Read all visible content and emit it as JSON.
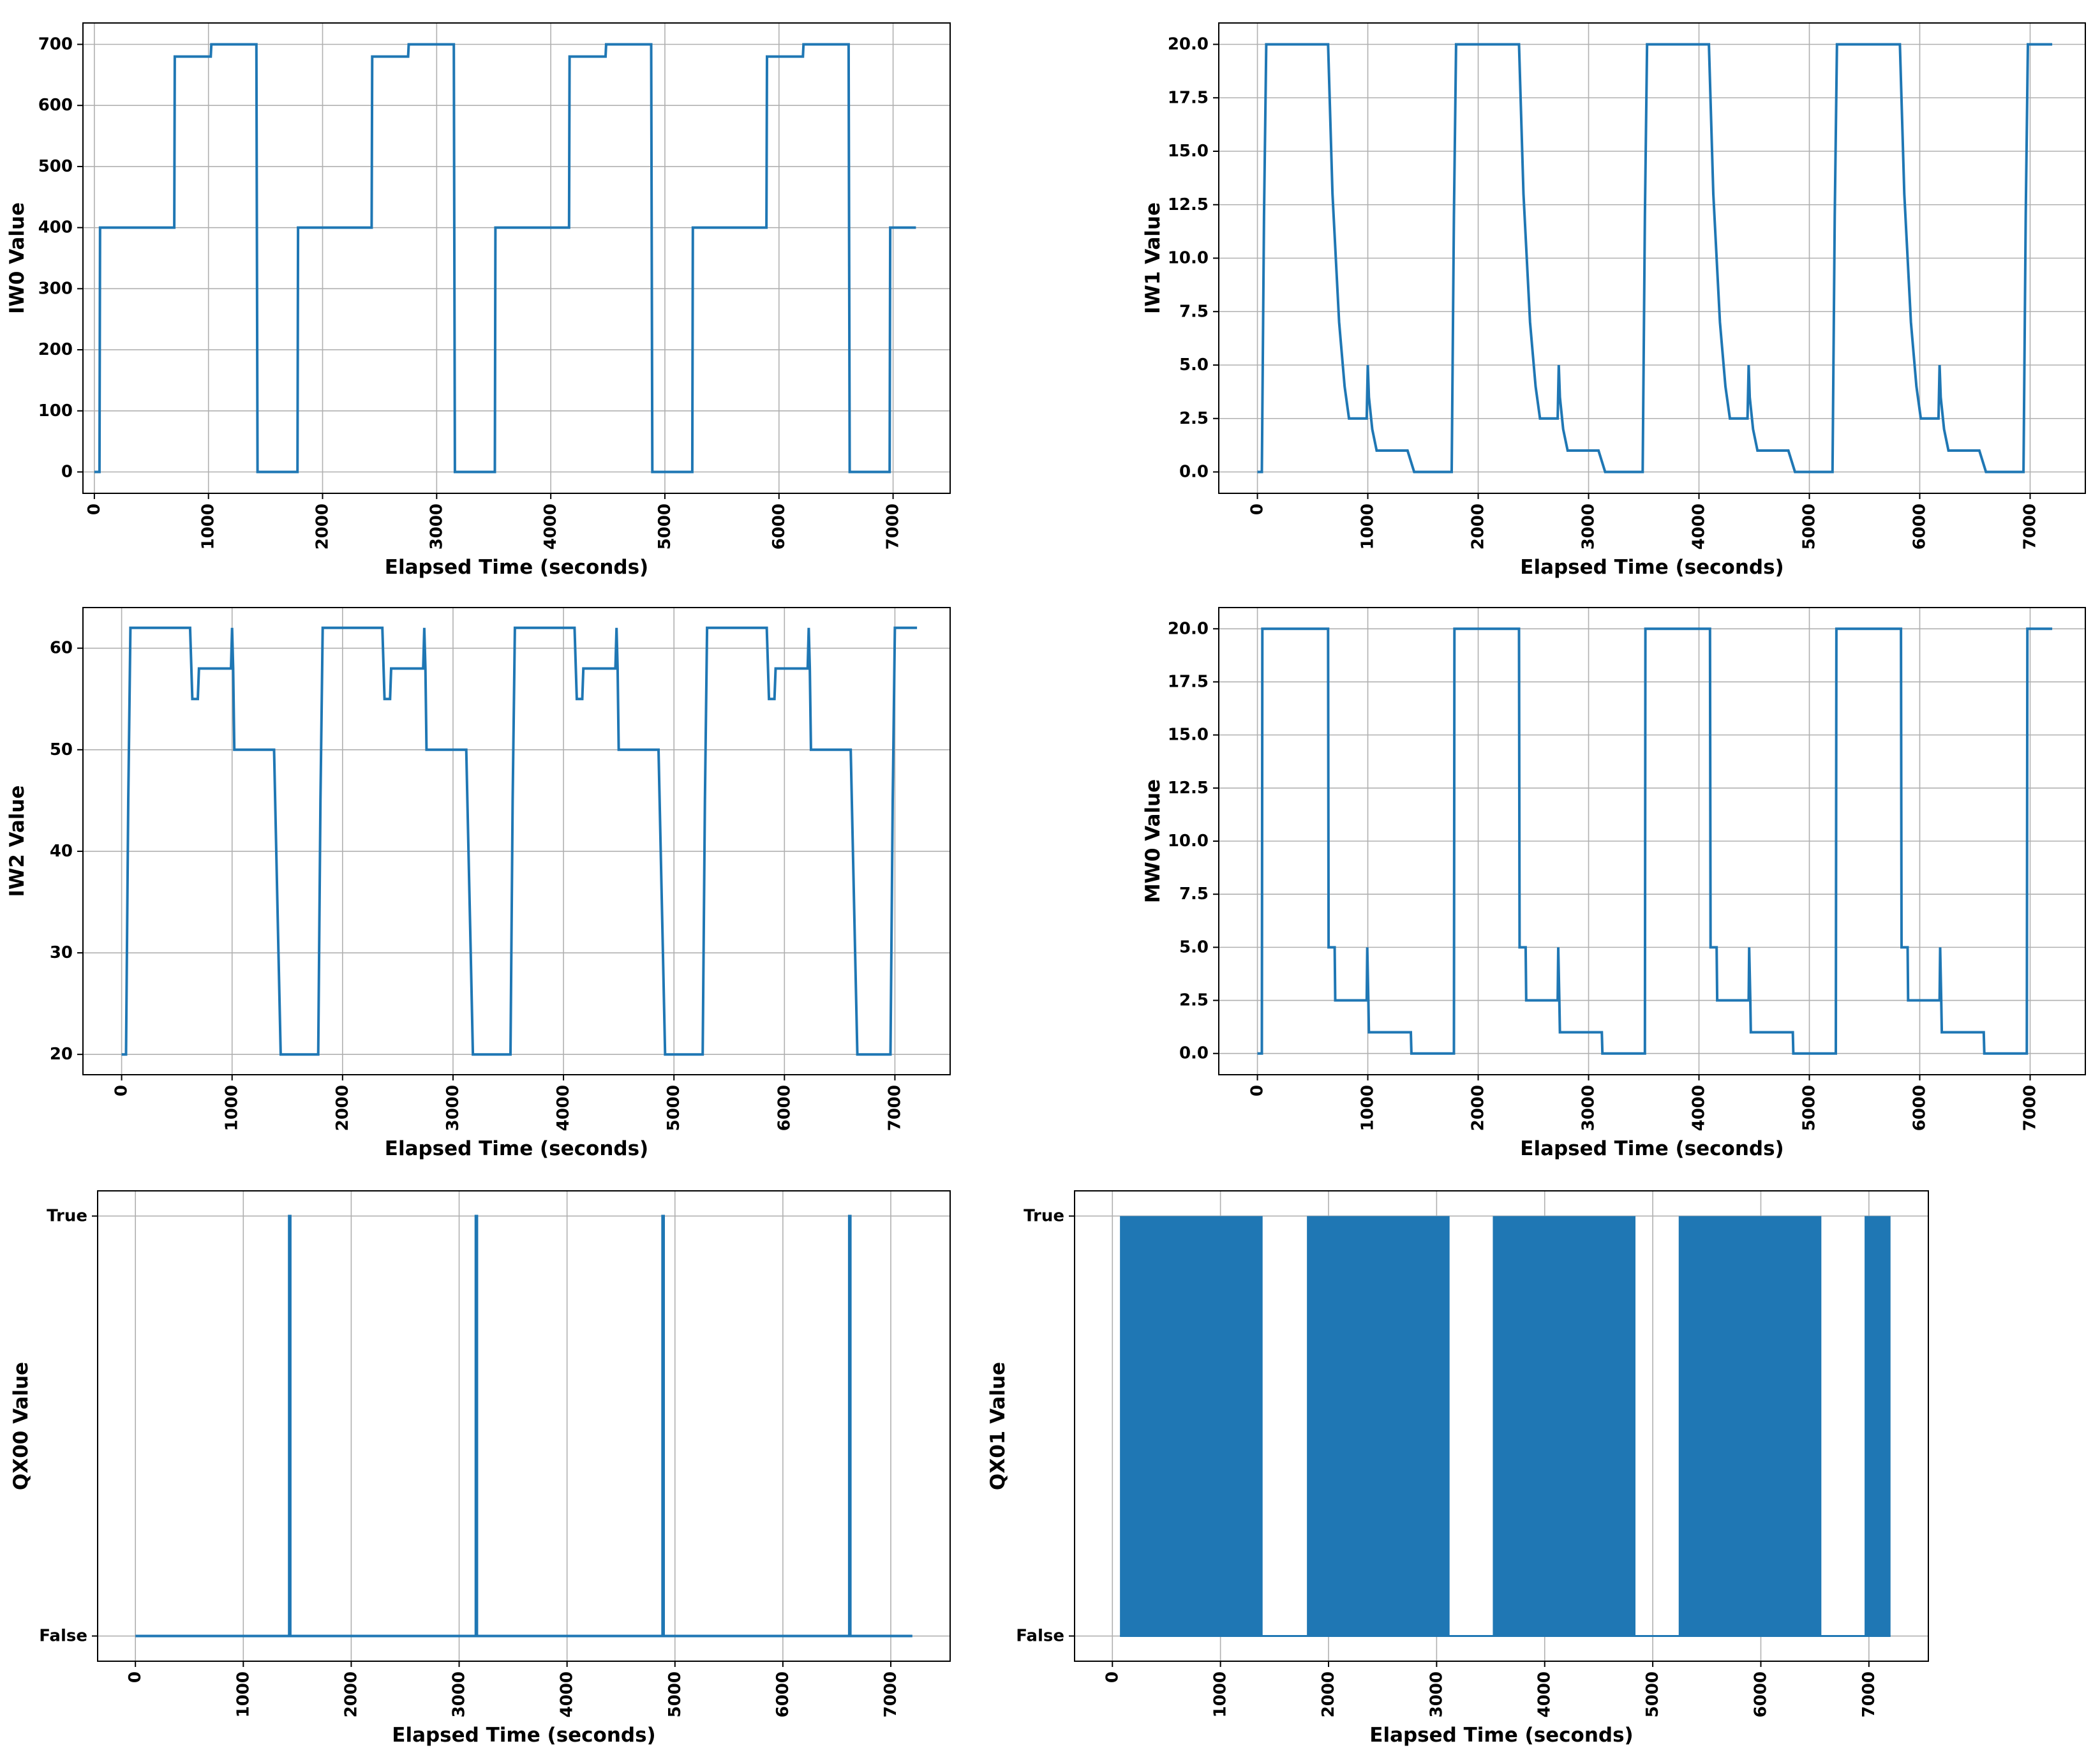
{
  "figure": {
    "series_color": "#1f77b4",
    "grid": true
  },
  "chart_data": [
    {
      "id": "iw0",
      "type": "line",
      "xlabel": "Elapsed Time (seconds)",
      "ylabel": "IW0 Value",
      "xlim": [
        -100,
        7500
      ],
      "ylim": [
        -35,
        735
      ],
      "xticks": [
        0,
        1000,
        2000,
        3000,
        4000,
        5000,
        6000,
        7000
      ],
      "yticks": [
        0,
        100,
        200,
        300,
        400,
        500,
        600,
        700
      ],
      "series": [
        {
          "points": [
            [
              0,
              0
            ],
            [
              45,
              0
            ],
            [
              50,
              400
            ],
            [
              700,
              400
            ],
            [
              705,
              680
            ],
            [
              1020,
              680
            ],
            [
              1025,
              700
            ],
            [
              1420,
              700
            ],
            [
              1430,
              0
            ],
            [
              1780,
              0
            ],
            [
              1785,
              400
            ],
            [
              2430,
              400
            ],
            [
              2435,
              680
            ],
            [
              2750,
              680
            ],
            [
              2755,
              700
            ],
            [
              3150,
              700
            ],
            [
              3160,
              0
            ],
            [
              3510,
              0
            ],
            [
              3515,
              400
            ],
            [
              4160,
              400
            ],
            [
              4165,
              680
            ],
            [
              4480,
              680
            ],
            [
              4485,
              700
            ],
            [
              4880,
              700
            ],
            [
              4890,
              0
            ],
            [
              5240,
              0
            ],
            [
              5245,
              400
            ],
            [
              5890,
              400
            ],
            [
              5895,
              680
            ],
            [
              6210,
              680
            ],
            [
              6215,
              700
            ],
            [
              6610,
              700
            ],
            [
              6620,
              0
            ],
            [
              6970,
              0
            ],
            [
              6975,
              400
            ],
            [
              7200,
              400
            ]
          ]
        }
      ]
    },
    {
      "id": "iw1",
      "type": "line",
      "xlabel": "Elapsed Time (seconds)",
      "ylabel": "IW1 Value",
      "xlim": [
        -350,
        7500
      ],
      "ylim": [
        -1,
        21
      ],
      "xticks": [
        0,
        1000,
        2000,
        3000,
        4000,
        5000,
        6000,
        7000
      ],
      "yticks": [
        0.0,
        2.5,
        5.0,
        7.5,
        10.0,
        12.5,
        15.0,
        17.5,
        20.0
      ],
      "series": [
        {
          "points": [
            [
              0,
              0
            ],
            [
              40,
              0
            ],
            [
              60,
              12
            ],
            [
              80,
              20
            ],
            [
              640,
              20
            ],
            [
              680,
              13
            ],
            [
              740,
              7
            ],
            [
              790,
              4
            ],
            [
              830,
              2.5
            ],
            [
              990,
              2.5
            ],
            [
              1000,
              5
            ],
            [
              1010,
              3.5
            ],
            [
              1040,
              2
            ],
            [
              1080,
              1
            ],
            [
              1360,
              1
            ],
            [
              1420,
              0
            ],
            [
              1760,
              0
            ],
            [
              1780,
              12
            ],
            [
              1800,
              20
            ],
            [
              2370,
              20
            ],
            [
              2410,
              13
            ],
            [
              2470,
              7
            ],
            [
              2520,
              4
            ],
            [
              2560,
              2.5
            ],
            [
              2720,
              2.5
            ],
            [
              2730,
              5
            ],
            [
              2740,
              3.5
            ],
            [
              2770,
              2
            ],
            [
              2810,
              1
            ],
            [
              3090,
              1
            ],
            [
              3150,
              0
            ],
            [
              3490,
              0
            ],
            [
              3510,
              12
            ],
            [
              3530,
              20
            ],
            [
              4090,
              20
            ],
            [
              4130,
              13
            ],
            [
              4190,
              7
            ],
            [
              4240,
              4
            ],
            [
              4280,
              2.5
            ],
            [
              4440,
              2.5
            ],
            [
              4450,
              5
            ],
            [
              4460,
              3.5
            ],
            [
              4490,
              2
            ],
            [
              4530,
              1
            ],
            [
              4810,
              1
            ],
            [
              4870,
              0
            ],
            [
              5210,
              0
            ],
            [
              5230,
              12
            ],
            [
              5250,
              20
            ],
            [
              5820,
              20
            ],
            [
              5860,
              13
            ],
            [
              5920,
              7
            ],
            [
              5970,
              4
            ],
            [
              6010,
              2.5
            ],
            [
              6170,
              2.5
            ],
            [
              6180,
              5
            ],
            [
              6190,
              3.5
            ],
            [
              6220,
              2
            ],
            [
              6260,
              1
            ],
            [
              6540,
              1
            ],
            [
              6600,
              0
            ],
            [
              6940,
              0
            ],
            [
              6960,
              12
            ],
            [
              6980,
              20
            ],
            [
              7200,
              20
            ]
          ]
        }
      ]
    },
    {
      "id": "iw2",
      "type": "line",
      "xlabel": "Elapsed Time (seconds)",
      "ylabel": "IW2 Value",
      "xlim": [
        -350,
        7500
      ],
      "ylim": [
        18,
        64
      ],
      "xticks": [
        0,
        1000,
        2000,
        3000,
        4000,
        5000,
        6000,
        7000
      ],
      "yticks": [
        20,
        30,
        40,
        50,
        60
      ],
      "series": [
        {
          "points": [
            [
              0,
              20
            ],
            [
              40,
              20
            ],
            [
              60,
              45
            ],
            [
              80,
              62
            ],
            [
              620,
              62
            ],
            [
              640,
              55
            ],
            [
              690,
              55
            ],
            [
              700,
              58
            ],
            [
              990,
              58
            ],
            [
              1000,
              62
            ],
            [
              1010,
              58
            ],
            [
              1020,
              50
            ],
            [
              1380,
              50
            ],
            [
              1420,
              30
            ],
            [
              1440,
              20
            ],
            [
              1780,
              20
            ],
            [
              1800,
              45
            ],
            [
              1820,
              62
            ],
            [
              2360,
              62
            ],
            [
              2380,
              55
            ],
            [
              2430,
              55
            ],
            [
              2440,
              58
            ],
            [
              2730,
              58
            ],
            [
              2740,
              62
            ],
            [
              2750,
              58
            ],
            [
              2760,
              50
            ],
            [
              3120,
              50
            ],
            [
              3160,
              30
            ],
            [
              3180,
              20
            ],
            [
              3520,
              20
            ],
            [
              3540,
              45
            ],
            [
              3560,
              62
            ],
            [
              4100,
              62
            ],
            [
              4120,
              55
            ],
            [
              4170,
              55
            ],
            [
              4180,
              58
            ],
            [
              4470,
              58
            ],
            [
              4480,
              62
            ],
            [
              4490,
              58
            ],
            [
              4500,
              50
            ],
            [
              4860,
              50
            ],
            [
              4900,
              30
            ],
            [
              4920,
              20
            ],
            [
              5260,
              20
            ],
            [
              5280,
              45
            ],
            [
              5300,
              62
            ],
            [
              5840,
              62
            ],
            [
              5860,
              55
            ],
            [
              5910,
              55
            ],
            [
              5920,
              58
            ],
            [
              6210,
              58
            ],
            [
              6220,
              62
            ],
            [
              6230,
              58
            ],
            [
              6240,
              50
            ],
            [
              6600,
              50
            ],
            [
              6640,
              30
            ],
            [
              6660,
              20
            ],
            [
              6960,
              20
            ],
            [
              6980,
              45
            ],
            [
              7000,
              62
            ],
            [
              7200,
              62
            ]
          ]
        }
      ]
    },
    {
      "id": "mw0",
      "type": "line",
      "xlabel": "Elapsed Time (seconds)",
      "ylabel": "MW0 Value",
      "xlim": [
        -350,
        7500
      ],
      "ylim": [
        -1,
        21
      ],
      "xticks": [
        0,
        1000,
        2000,
        3000,
        4000,
        5000,
        6000,
        7000
      ],
      "yticks": [
        0.0,
        2.5,
        5.0,
        7.5,
        10.0,
        12.5,
        15.0,
        17.5,
        20.0
      ],
      "series": [
        {
          "points": [
            [
              0,
              0
            ],
            [
              40,
              0
            ],
            [
              45,
              20
            ],
            [
              640,
              20
            ],
            [
              645,
              5
            ],
            [
              700,
              5
            ],
            [
              705,
              2.5
            ],
            [
              990,
              2.5
            ],
            [
              995,
              5
            ],
            [
              1005,
              2.5
            ],
            [
              1010,
              1
            ],
            [
              1390,
              1
            ],
            [
              1395,
              0
            ],
            [
              1780,
              0
            ],
            [
              1785,
              20
            ],
            [
              2370,
              20
            ],
            [
              2375,
              5
            ],
            [
              2430,
              5
            ],
            [
              2435,
              2.5
            ],
            [
              2720,
              2.5
            ],
            [
              2725,
              5
            ],
            [
              2735,
              2.5
            ],
            [
              2740,
              1
            ],
            [
              3120,
              1
            ],
            [
              3125,
              0
            ],
            [
              3510,
              0
            ],
            [
              3515,
              20
            ],
            [
              4100,
              20
            ],
            [
              4105,
              5
            ],
            [
              4160,
              5
            ],
            [
              4165,
              2.5
            ],
            [
              4450,
              2.5
            ],
            [
              4455,
              5
            ],
            [
              4465,
              2.5
            ],
            [
              4470,
              1
            ],
            [
              4850,
              1
            ],
            [
              4855,
              0
            ],
            [
              5240,
              0
            ],
            [
              5245,
              20
            ],
            [
              5830,
              20
            ],
            [
              5835,
              5
            ],
            [
              5890,
              5
            ],
            [
              5895,
              2.5
            ],
            [
              6180,
              2.5
            ],
            [
              6185,
              5
            ],
            [
              6195,
              2.5
            ],
            [
              6200,
              1
            ],
            [
              6580,
              1
            ],
            [
              6585,
              0
            ],
            [
              6970,
              0
            ],
            [
              6975,
              20
            ],
            [
              7200,
              20
            ]
          ]
        }
      ]
    },
    {
      "id": "qx00",
      "type": "line",
      "xlabel": "Elapsed Time (seconds)",
      "ylabel": "QX00 Value",
      "xlim": [
        -350,
        7550
      ],
      "ylim": [
        -0.06,
        1.06
      ],
      "xticks": [
        0,
        1000,
        2000,
        3000,
        4000,
        5000,
        6000,
        7000
      ],
      "yticks": [
        0,
        1
      ],
      "yticklabels": [
        "False",
        "True"
      ],
      "series": [
        {
          "points": [
            [
              0,
              0
            ],
            [
              1425,
              0
            ],
            [
              1425,
              1
            ],
            [
              1435,
              1
            ],
            [
              1435,
              0
            ],
            [
              3155,
              0
            ],
            [
              3155,
              1
            ],
            [
              3165,
              1
            ],
            [
              3165,
              0
            ],
            [
              4885,
              0
            ],
            [
              4885,
              1
            ],
            [
              4895,
              1
            ],
            [
              4895,
              0
            ],
            [
              6615,
              0
            ],
            [
              6615,
              1
            ],
            [
              6625,
              1
            ],
            [
              6625,
              0
            ],
            [
              7200,
              0
            ]
          ]
        }
      ]
    },
    {
      "id": "qx01",
      "type": "area",
      "xlabel": "Elapsed Time (seconds)",
      "ylabel": "QX01 Value",
      "xlim": [
        -350,
        7550
      ],
      "ylim": [
        -0.06,
        1.06
      ],
      "xticks": [
        0,
        1000,
        2000,
        3000,
        4000,
        5000,
        6000,
        7000
      ],
      "yticks": [
        0,
        1
      ],
      "yticklabels": [
        "False",
        "True"
      ],
      "series": [
        {
          "active_intervals": [
            [
              70,
              1390
            ],
            [
              1800,
              3120
            ],
            [
              3520,
              4840
            ],
            [
              5240,
              6560
            ],
            [
              6960,
              7200
            ]
          ]
        }
      ]
    }
  ]
}
